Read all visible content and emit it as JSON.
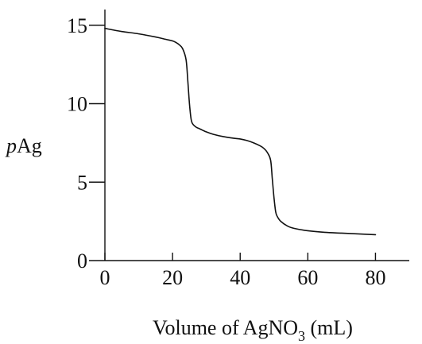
{
  "chart_data": {
    "type": "line",
    "title": "",
    "xlabel": {
      "prefix": "Volume of AgNO",
      "subscript": "3",
      "suffix": " (mL)"
    },
    "ylabel": {
      "italic": "p",
      "rest": "Ag"
    },
    "xlim": [
      0,
      90
    ],
    "ylim": [
      0,
      16
    ],
    "xticks": [
      0,
      20,
      40,
      60,
      80
    ],
    "yticks": [
      0,
      5,
      10,
      15
    ],
    "grid": false,
    "legend": "none",
    "series": [
      {
        "x": [
          0,
          5,
          10,
          15,
          18,
          20,
          21,
          22,
          23,
          24,
          24.5,
          25,
          25.5,
          26,
          27,
          28,
          30,
          32,
          35,
          38,
          40,
          42,
          44,
          46,
          47,
          48,
          49,
          49.5,
          50,
          50.5,
          51,
          52,
          54,
          56,
          60,
          65,
          70,
          75,
          80
        ],
        "y": [
          14.8,
          14.6,
          14.45,
          14.25,
          14.1,
          14.0,
          13.9,
          13.75,
          13.5,
          12.8,
          11.5,
          10.0,
          9.0,
          8.7,
          8.5,
          8.4,
          8.2,
          8.05,
          7.9,
          7.8,
          7.75,
          7.65,
          7.5,
          7.3,
          7.15,
          6.9,
          6.4,
          5.2,
          4.0,
          3.1,
          2.8,
          2.5,
          2.2,
          2.05,
          1.9,
          1.8,
          1.75,
          1.7,
          1.65
        ]
      }
    ]
  }
}
